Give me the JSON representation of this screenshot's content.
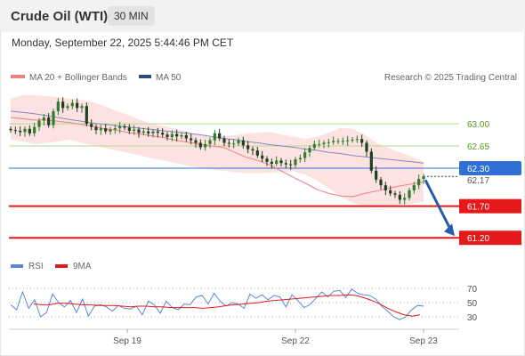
{
  "header": {
    "title": "Crude Oil (WTI)",
    "timeframe": "30 MIN",
    "datetime": "Monday, September 22, 2025 5:44:46 PM CET"
  },
  "legend": {
    "ma20": "MA 20 + Bollinger Bands",
    "ma50": "MA 50",
    "credit": "Research © 2025 Trading Central",
    "rsi": "RSI",
    "rsi_ma": "9MA"
  },
  "colors": {
    "ma20": "#f08080",
    "bands": "#fde2e2",
    "ma50": "#8888bb",
    "support": "#e41a1a",
    "resistance": "#b5d98a",
    "current": "#2f6fd6",
    "candle_up": "#2e7d32",
    "candle_down": "#1f3f1f",
    "arrow": "#2a5aa8",
    "rsi": "#5b86d6",
    "rsi_ma": "#e41a1a"
  },
  "chart_data": [
    {
      "type": "candlestick",
      "ylim": [
        60.95,
        63.55
      ],
      "x_ticks": [
        "Sep 19",
        "Sep 22",
        "Sep 23"
      ],
      "levels": [
        {
          "value": 63.0,
          "label": "63.00",
          "kind": "resistance"
        },
        {
          "value": 62.65,
          "label": "62.65",
          "kind": "resistance"
        },
        {
          "value": 62.3,
          "label": "62.30",
          "kind": "pivot"
        },
        {
          "value": 61.7,
          "label": "61.70",
          "kind": "support"
        },
        {
          "value": 61.2,
          "label": "61.20",
          "kind": "support"
        }
      ],
      "current_price": {
        "value": 62.17,
        "label": "62.17"
      },
      "series": [
        {
          "name": "Price",
          "close": [
            62.9,
            62.89,
            62.87,
            62.92,
            62.85,
            62.95,
            63.05,
            63.1,
            62.98,
            63.2,
            63.35,
            63.25,
            63.28,
            63.33,
            63.25,
            63.28,
            63.0,
            62.95,
            62.9,
            62.93,
            62.88,
            62.91,
            62.93,
            62.96,
            62.94,
            62.89,
            62.91,
            62.86,
            62.88,
            62.85,
            62.88,
            62.86,
            62.83,
            62.79,
            62.84,
            62.8,
            62.82,
            62.77,
            62.74,
            62.7,
            62.63,
            62.68,
            62.74,
            62.85,
            62.77,
            62.7,
            62.69,
            62.69,
            62.74,
            62.66,
            62.6,
            62.58,
            62.5,
            62.45,
            62.4,
            62.37,
            62.42,
            62.38,
            62.36,
            62.35,
            62.44,
            62.46,
            62.55,
            62.62,
            62.68,
            62.68,
            62.7,
            62.71,
            62.73,
            62.73,
            62.73,
            62.74,
            62.75,
            62.76,
            62.7,
            62.56,
            62.26,
            62.12,
            62.03,
            61.95,
            61.9,
            61.88,
            61.8,
            61.83,
            61.95,
            62.03,
            62.13,
            62.17
          ]
        },
        {
          "name": "MA 20",
          "values": [
            63.1,
            63.08,
            63.06,
            63.06,
            63.04,
            63.02,
            62.99,
            62.96,
            62.92,
            62.9,
            62.86,
            62.84,
            62.81,
            62.78,
            62.74,
            62.71,
            62.68,
            62.65,
            62.63,
            62.55,
            62.47,
            62.42,
            62.35,
            62.25,
            62.15,
            62.06,
            61.96,
            61.9,
            61.86,
            61.85,
            61.9,
            61.94,
            61.98,
            62.02,
            62.05,
            62.08
          ]
        },
        {
          "name": "MA 50",
          "values": [
            63.2,
            63.18,
            63.16,
            63.13,
            63.1,
            63.07,
            63.04,
            63.01,
            62.99,
            62.97,
            62.95,
            62.93,
            62.91,
            62.89,
            62.87,
            62.85,
            62.83,
            62.8,
            62.77,
            62.75,
            62.72,
            62.7,
            62.67,
            62.65,
            62.63,
            62.6,
            62.58,
            62.55,
            62.53,
            62.5,
            62.48,
            62.46,
            62.44,
            62.42,
            62.4,
            62.38
          ]
        },
        {
          "name": "Bollinger Upper",
          "values": [
            63.4,
            63.45,
            63.45,
            63.44,
            63.42,
            63.4,
            63.38,
            63.34,
            63.28,
            63.2,
            63.14,
            63.06,
            63.0,
            62.96,
            62.92,
            62.88,
            62.82,
            62.8,
            62.8,
            62.82,
            62.85,
            62.86,
            62.87,
            62.83,
            62.8,
            62.76,
            62.8,
            62.86,
            62.94,
            62.92,
            62.83,
            62.7,
            62.62,
            62.55,
            62.48,
            62.4
          ]
        },
        {
          "name": "Bollinger Lower",
          "values": [
            62.75,
            62.72,
            62.68,
            62.7,
            62.72,
            62.75,
            62.7,
            62.66,
            62.62,
            62.58,
            62.54,
            62.5,
            62.45,
            62.42,
            62.38,
            62.34,
            62.3,
            62.28,
            62.26,
            62.24,
            62.22,
            62.22,
            62.23,
            62.24,
            62.25,
            62.2,
            62.1,
            61.98,
            61.85,
            61.75,
            61.7,
            61.68,
            61.7,
            61.72,
            61.74,
            61.77
          ]
        }
      ],
      "forecast_arrow": {
        "from": 62.17,
        "to": 61.2
      }
    },
    {
      "type": "line",
      "title": "RSI",
      "yticks": [
        70,
        50,
        30
      ],
      "series": [
        {
          "name": "RSI",
          "values": [
            47,
            40,
            65,
            42,
            54,
            30,
            36,
            62,
            50,
            44,
            53,
            36,
            55,
            31,
            45,
            47,
            44,
            38,
            46,
            42,
            41,
            45,
            33,
            52,
            47,
            35,
            52,
            43,
            40,
            48,
            47,
            58,
            60,
            48,
            63,
            52,
            45,
            50,
            48,
            42,
            62,
            56,
            61,
            54,
            60,
            58,
            44,
            61,
            53,
            43,
            47,
            56,
            65,
            58,
            66,
            67,
            57,
            69,
            63,
            61,
            60,
            55,
            45,
            38,
            30,
            26,
            30,
            40,
            46,
            45
          ]
        },
        {
          "name": "9MA",
          "values": [
            48,
            47,
            47,
            49,
            49,
            48,
            47,
            47,
            46,
            46,
            46,
            45,
            44,
            45,
            45,
            44,
            44,
            43,
            43,
            43,
            43,
            42,
            43,
            44,
            46,
            47,
            48,
            49,
            50,
            52,
            53,
            54,
            55,
            56,
            57,
            58,
            59,
            60,
            60,
            61,
            60,
            57,
            53,
            48,
            42,
            37,
            33,
            31,
            33
          ]
        }
      ]
    }
  ]
}
